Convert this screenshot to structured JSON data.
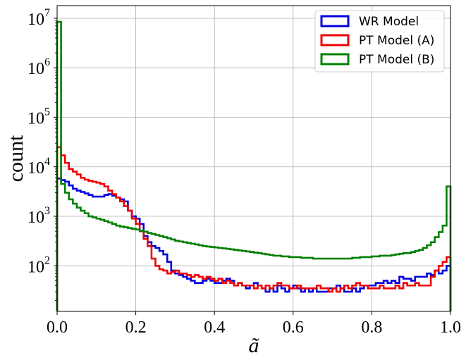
{
  "chart_data": {
    "type": "histogram-step",
    "title": "",
    "xlabel": "ã",
    "ylabel": "count",
    "xlim": [
      0.0,
      1.0
    ],
    "ylim": [
      12,
      18000000
    ],
    "yscale": "log",
    "grid": true,
    "legend_position": "top-right",
    "x_ticks": [
      {
        "value": 0.0,
        "label": "0.0"
      },
      {
        "value": 0.2,
        "label": "0.2"
      },
      {
        "value": 0.4,
        "label": "0.4"
      },
      {
        "value": 0.6,
        "label": "0.6"
      },
      {
        "value": 0.8,
        "label": "0.8"
      },
      {
        "value": 1.0,
        "label": "1.0"
      }
    ],
    "y_ticks": [
      {
        "value": 100,
        "base": "10",
        "exp": "2"
      },
      {
        "value": 1000,
        "base": "10",
        "exp": "3"
      },
      {
        "value": 10000,
        "base": "10",
        "exp": "4"
      },
      {
        "value": 100000,
        "base": "10",
        "exp": "5"
      },
      {
        "value": 1000000,
        "base": "10",
        "exp": "6"
      },
      {
        "value": 10000000,
        "base": "10",
        "exp": "7"
      }
    ],
    "bin_edges": {
      "start": 0.0,
      "end": 1.0,
      "count": 100
    },
    "series": [
      {
        "name": "WR Model",
        "color": "#0000dd",
        "values": [
          5800,
          5400,
          5000,
          4200,
          3600,
          3300,
          3100,
          2900,
          2700,
          2500,
          2500,
          2500,
          2700,
          2800,
          2600,
          2400,
          2200,
          2000,
          1300,
          1000,
          900,
          700,
          400,
          300,
          250,
          230,
          200,
          170,
          120,
          80,
          70,
          65,
          60,
          55,
          50,
          45,
          45,
          50,
          55,
          50,
          45,
          45,
          50,
          55,
          50,
          40,
          45,
          40,
          35,
          40,
          45,
          40,
          35,
          30,
          35,
          30,
          40,
          35,
          30,
          35,
          40,
          35,
          30,
          35,
          30,
          35,
          30,
          30,
          30,
          35,
          35,
          40,
          35,
          30,
          30,
          35,
          30,
          35,
          40,
          40,
          40,
          45,
          45,
          50,
          45,
          50,
          45,
          60,
          55,
          55,
          50,
          60,
          60,
          60,
          70,
          65,
          80,
          70,
          80,
          100
        ]
      },
      {
        "name": "PT Model (A)",
        "color": "#ee0000",
        "values": [
          25000,
          17000,
          12000,
          9000,
          8000,
          7000,
          6000,
          5500,
          5200,
          5000,
          4800,
          4500,
          4000,
          3300,
          2800,
          2400,
          2000,
          1600,
          1300,
          900,
          700,
          500,
          350,
          250,
          140,
          100,
          85,
          80,
          70,
          75,
          80,
          70,
          70,
          65,
          60,
          65,
          60,
          55,
          60,
          55,
          50,
          55,
          45,
          50,
          45,
          40,
          45,
          40,
          40,
          40,
          35,
          40,
          35,
          40,
          35,
          40,
          45,
          40,
          40,
          35,
          35,
          40,
          35,
          35,
          35,
          35,
          40,
          35,
          35,
          30,
          35,
          30,
          35,
          40,
          35,
          40,
          45,
          40,
          40,
          35,
          35,
          35,
          40,
          35,
          35,
          35,
          40,
          35,
          45,
          40,
          40,
          45,
          40,
          40,
          40,
          60,
          80,
          100,
          120,
          150
        ]
      },
      {
        "name": "PT Model (B)",
        "color": "#008000",
        "values": [
          8500000,
          4500,
          3000,
          2200,
          1800,
          1500,
          1300,
          1150,
          1000,
          950,
          900,
          850,
          800,
          750,
          700,
          650,
          620,
          600,
          580,
          560,
          540,
          510,
          490,
          460,
          440,
          420,
          400,
          380,
          360,
          340,
          320,
          310,
          300,
          290,
          280,
          270,
          260,
          250,
          245,
          240,
          235,
          230,
          225,
          220,
          215,
          210,
          205,
          200,
          195,
          190,
          185,
          180,
          175,
          170,
          165,
          160,
          160,
          155,
          155,
          150,
          150,
          150,
          145,
          145,
          145,
          140,
          140,
          140,
          140,
          140,
          140,
          140,
          140,
          140,
          140,
          145,
          145,
          150,
          150,
          150,
          155,
          155,
          160,
          160,
          160,
          165,
          170,
          175,
          180,
          180,
          190,
          200,
          210,
          230,
          260,
          300,
          380,
          480,
          650,
          4000
        ]
      }
    ]
  }
}
